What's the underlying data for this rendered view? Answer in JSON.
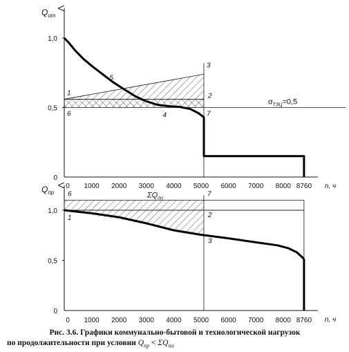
{
  "chart_data": [
    {
      "type": "line",
      "title": "",
      "ylabel_base": "Q",
      "ylabel_sub": "от",
      "xlabel": "n, ч",
      "xlim": [
        0,
        8760
      ],
      "ylim": [
        0,
        1.15
      ],
      "x_ticks": [
        0,
        1000,
        2000,
        3000,
        4000,
        5000,
        6000,
        7000,
        8000,
        8760
      ],
      "y_ticks": [
        "0",
        "0,5",
        "1,0"
      ],
      "y_tick_values": [
        0,
        0.5,
        1.0
      ],
      "series": [
        {
          "x": [
            0,
            150,
            400,
            700,
            1000,
            1400,
            1800,
            2200,
            2600,
            3000,
            3400,
            3800,
            4200,
            4600,
            4900,
            5100,
            5100,
            8760,
            8760
          ],
          "y": [
            1.0,
            0.97,
            0.91,
            0.85,
            0.8,
            0.74,
            0.68,
            0.63,
            0.58,
            0.545,
            0.52,
            0.51,
            0.505,
            0.49,
            0.46,
            0.43,
            0.15,
            0.15,
            0
          ]
        }
      ],
      "reference_lines": [
        {
          "y": 0.5,
          "label_base": "α",
          "label_sub": "ТЭЦ",
          "label_value": "=0,5"
        }
      ],
      "hatched_region": {
        "x": [
          0,
          5100
        ],
        "upper": [
          0.56,
          0.74
        ],
        "lower": [
          0.5,
          0.5
        ]
      },
      "cross_hatched_region": {
        "x": [
          0,
          5100
        ],
        "upper": [
          0.56,
          0.56
        ],
        "lower": [
          0.5,
          0.5
        ]
      },
      "points": [
        {
          "label": "1",
          "x": 0,
          "y": 0.56
        },
        {
          "label": "2",
          "x": 5100,
          "y": 0.56
        },
        {
          "label": "3",
          "x": 5100,
          "y": 0.74
        },
        {
          "label": "4",
          "x": 3800,
          "y": 0.5
        },
        {
          "label": "5",
          "x": 1800,
          "y": 0.66
        },
        {
          "label": "6",
          "x": 0,
          "y": 0.5
        },
        {
          "label": "7",
          "x": 5100,
          "y": 0.5
        }
      ]
    },
    {
      "type": "line",
      "title": "",
      "ylabel_base": "Q",
      "ylabel_sub": "пр",
      "xlabel": "n, ч",
      "xlim": [
        0,
        8760
      ],
      "ylim": [
        0,
        1.15
      ],
      "x_ticks": [
        0,
        1000,
        2000,
        3000,
        4000,
        5000,
        6000,
        7000,
        8000,
        8760
      ],
      "y_ticks": [
        "0",
        "0,5",
        "1,0"
      ],
      "y_tick_values": [
        0,
        0.5,
        1.0
      ],
      "series": [
        {
          "x": [
            0,
            1000,
            2000,
            3000,
            4000,
            5000,
            6000,
            7000,
            7800,
            8200,
            8500,
            8700,
            8760,
            8760
          ],
          "y": [
            1.0,
            0.97,
            0.93,
            0.87,
            0.8,
            0.755,
            0.72,
            0.68,
            0.65,
            0.62,
            0.58,
            0.53,
            0.51,
            0
          ]
        }
      ],
      "reference_lines": [
        {
          "y": 1.0,
          "label": ""
        },
        {
          "y": 1.1,
          "label": ""
        }
      ],
      "hatched_region": {
        "x": [
          0,
          5100
        ],
        "upper": [
          1.1,
          1.1
        ],
        "lower": [
          1.0,
          0.755
        ]
      },
      "region_label_base": "ΣQ",
      "region_label_sub": "по",
      "points": [
        {
          "label": "1",
          "x": 0,
          "y": 1.0
        },
        {
          "label": "2",
          "x": 5100,
          "y": 1.0
        },
        {
          "label": "3",
          "x": 5100,
          "y": 0.755
        },
        {
          "label": "6",
          "x": 0,
          "y": 1.1
        },
        {
          "label": "7",
          "x": 5100,
          "y": 1.1
        }
      ]
    }
  ],
  "caption": {
    "line1": "Рис. 3.6. Графики коммунально-бытовой и технологической нагрузок",
    "line2_start": "по продолжительности при условии",
    "q_base": "Q",
    "q_sub": "пр",
    "lt": " < ",
    "sum_base": "ΣQ",
    "sum_sub": "по"
  }
}
